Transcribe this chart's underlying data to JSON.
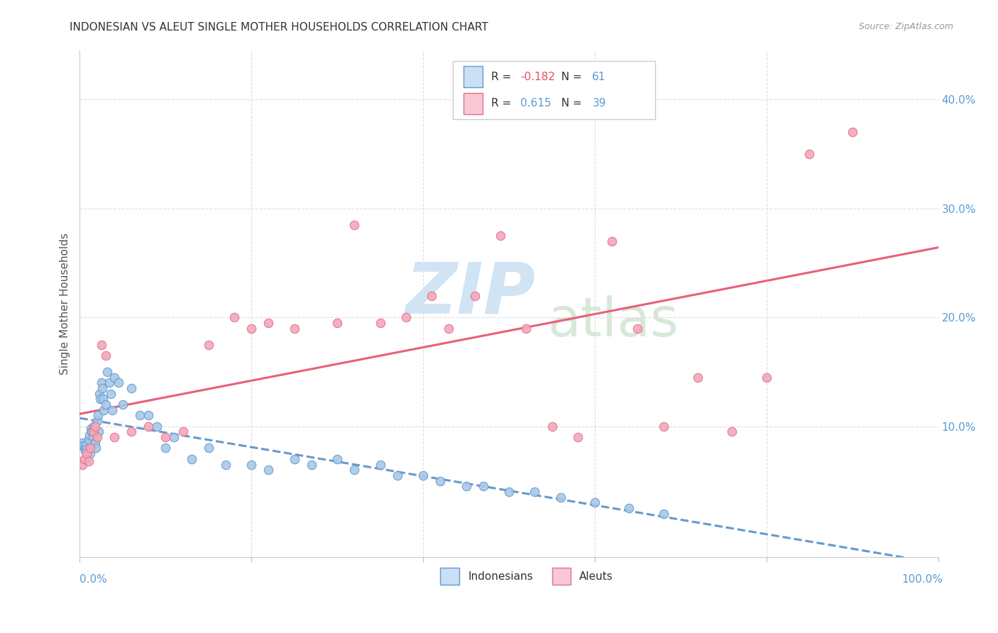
{
  "title": "INDONESIAN VS ALEUT SINGLE MOTHER HOUSEHOLDS CORRELATION CHART",
  "source": "Source: ZipAtlas.com",
  "ylabel": "Single Mother Households",
  "legend_indonesians": "Indonesians",
  "legend_aleuts": "Aleuts",
  "R_indonesian": -0.182,
  "N_indonesian": 61,
  "R_aleut": 0.615,
  "N_aleut": 39,
  "xlim": [
    0.0,
    1.0
  ],
  "ylim": [
    -0.02,
    0.445
  ],
  "yticks": [
    0.1,
    0.2,
    0.3,
    0.4
  ],
  "ytick_labels": [
    "10.0%",
    "20.0%",
    "30.0%",
    "40.0%"
  ],
  "xticks": [
    0.0,
    0.2,
    0.4,
    0.6,
    0.8,
    1.0
  ],
  "color_indonesian": "#a8c8e8",
  "color_aleut": "#f4a8b8",
  "color_indonesian_edge": "#6699cc",
  "color_aleut_edge": "#e07090",
  "color_indonesian_line": "#6699cc",
  "color_aleut_line": "#e8607a",
  "color_indonesian_legend_box": "#c8dff5",
  "color_aleut_legend_box": "#f8c8d4",
  "watermark_zip": "ZIP",
  "watermark_atlas": "atlas",
  "indonesian_x": [
    0.003,
    0.004,
    0.005,
    0.006,
    0.007,
    0.008,
    0.009,
    0.01,
    0.011,
    0.012,
    0.013,
    0.014,
    0.015,
    0.016,
    0.017,
    0.018,
    0.019,
    0.02,
    0.021,
    0.022,
    0.023,
    0.024,
    0.025,
    0.026,
    0.027,
    0.028,
    0.03,
    0.032,
    0.034,
    0.036,
    0.038,
    0.04,
    0.045,
    0.05,
    0.06,
    0.07,
    0.08,
    0.09,
    0.1,
    0.11,
    0.13,
    0.15,
    0.17,
    0.2,
    0.22,
    0.25,
    0.27,
    0.3,
    0.32,
    0.35,
    0.37,
    0.4,
    0.42,
    0.45,
    0.47,
    0.5,
    0.53,
    0.56,
    0.6,
    0.64,
    0.68
  ],
  "indonesian_y": [
    0.085,
    0.082,
    0.08,
    0.078,
    0.083,
    0.079,
    0.076,
    0.088,
    0.092,
    0.075,
    0.098,
    0.095,
    0.09,
    0.1,
    0.095,
    0.085,
    0.08,
    0.105,
    0.11,
    0.095,
    0.13,
    0.125,
    0.14,
    0.135,
    0.125,
    0.115,
    0.12,
    0.15,
    0.14,
    0.13,
    0.115,
    0.145,
    0.14,
    0.12,
    0.135,
    0.11,
    0.11,
    0.1,
    0.08,
    0.09,
    0.07,
    0.08,
    0.065,
    0.065,
    0.06,
    0.07,
    0.065,
    0.07,
    0.06,
    0.065,
    0.055,
    0.055,
    0.05,
    0.045,
    0.045,
    0.04,
    0.04,
    0.035,
    0.03,
    0.025,
    0.02
  ],
  "aleut_x": [
    0.003,
    0.005,
    0.008,
    0.01,
    0.012,
    0.015,
    0.018,
    0.02,
    0.025,
    0.03,
    0.04,
    0.06,
    0.08,
    0.1,
    0.12,
    0.15,
    0.18,
    0.2,
    0.22,
    0.25,
    0.3,
    0.32,
    0.35,
    0.38,
    0.41,
    0.43,
    0.46,
    0.49,
    0.52,
    0.55,
    0.58,
    0.62,
    0.65,
    0.68,
    0.72,
    0.76,
    0.8,
    0.85,
    0.9
  ],
  "aleut_y": [
    0.065,
    0.07,
    0.075,
    0.068,
    0.08,
    0.095,
    0.1,
    0.09,
    0.175,
    0.165,
    0.09,
    0.095,
    0.1,
    0.09,
    0.095,
    0.175,
    0.2,
    0.19,
    0.195,
    0.19,
    0.195,
    0.285,
    0.195,
    0.2,
    0.22,
    0.19,
    0.22,
    0.275,
    0.19,
    0.1,
    0.09,
    0.27,
    0.19,
    0.1,
    0.145,
    0.095,
    0.145,
    0.35,
    0.37
  ]
}
